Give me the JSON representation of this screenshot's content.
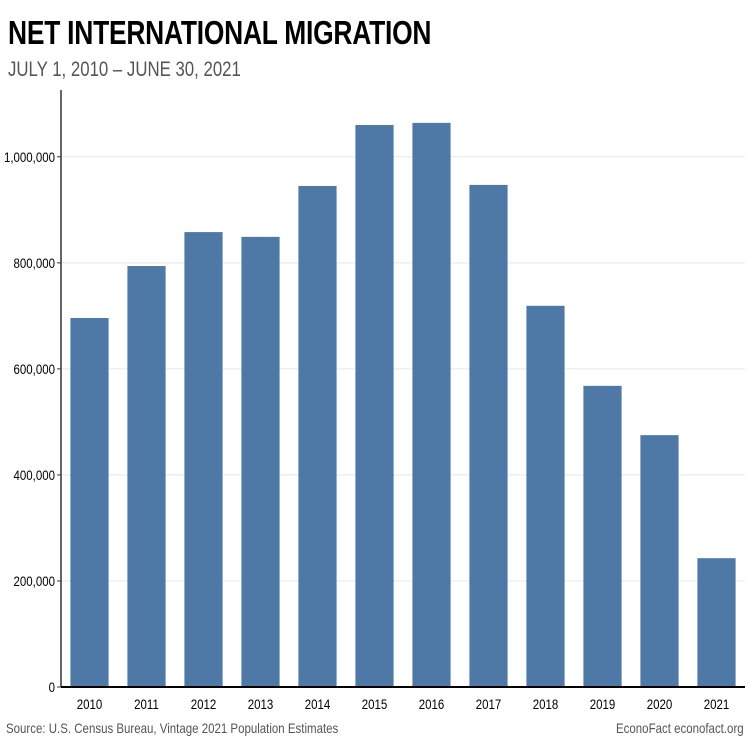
{
  "chart_data": {
    "type": "bar",
    "title": "NET INTERNATIONAL MIGRATION",
    "subtitle": "JULY 1, 2010 – JUNE 30, 2021",
    "xlabel": "",
    "ylabel": "",
    "categories": [
      "2010",
      "2011",
      "2012",
      "2013",
      "2014",
      "2015",
      "2016",
      "2017",
      "2018",
      "2019",
      "2020",
      "2021"
    ],
    "values": [
      696000,
      794000,
      858000,
      849000,
      945000,
      1060000,
      1064000,
      947000,
      719000,
      568000,
      475000,
      243000
    ],
    "ylim": [
      0,
      1126000
    ],
    "yticks": [
      0,
      200000,
      400000,
      600000,
      800000,
      1000000
    ],
    "ytick_labels": [
      "0",
      "200,000",
      "400,000",
      "600,000",
      "800,000",
      "1,000,000"
    ],
    "grid": true,
    "legend": "none",
    "bar_color": "#4e79a7"
  },
  "footer": {
    "source": "Source: U.S. Census Bureau, Vintage 2021 Population Estimates",
    "brand": "EconoFact  econofact.org"
  }
}
